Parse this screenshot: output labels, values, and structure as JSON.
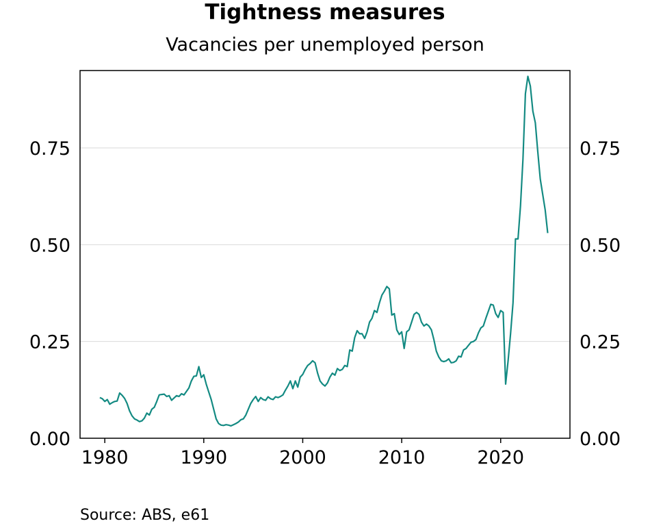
{
  "chart_data": {
    "type": "line",
    "title": "Tightness measures",
    "subtitle": "Vacancies per unemployed person",
    "source": "Source: ABS, e61",
    "xlabel": "",
    "ylabel": "",
    "xlim": [
      1977.5,
      2027
    ],
    "ylim": [
      0,
      0.95
    ],
    "x_ticks": [
      1980,
      1990,
      2000,
      2010,
      2020
    ],
    "x_tick_labels": [
      "1980",
      "1990",
      "2000",
      "2010",
      "2020"
    ],
    "y_ticks": [
      0,
      0.25,
      0.5,
      0.75
    ],
    "y_tick_labels": [
      "0.00",
      "0.25",
      "0.50",
      "0.75"
    ],
    "grid": "horizontal",
    "legend": "none",
    "line_color": "#138a82",
    "series": [
      {
        "x": [
          1979.5,
          1979.75,
          1980,
          1980.25,
          1980.5,
          1980.75,
          1981,
          1981.25,
          1981.5,
          1981.75,
          1982,
          1982.25,
          1982.5,
          1982.75,
          1983,
          1983.25,
          1983.5,
          1983.75,
          1984,
          1984.25,
          1984.5,
          1984.75,
          1985,
          1985.25,
          1985.5,
          1985.75,
          1986,
          1986.25,
          1986.5,
          1986.75,
          1987,
          1987.25,
          1987.5,
          1987.75,
          1988,
          1988.25,
          1988.5,
          1988.75,
          1989,
          1989.25,
          1989.5,
          1989.75,
          1990,
          1990.25,
          1990.5,
          1990.75,
          1991,
          1991.25,
          1991.5,
          1991.75,
          1992,
          1992.25,
          1992.5,
          1992.75,
          1993,
          1993.25,
          1993.5,
          1993.75,
          1994,
          1994.25,
          1994.5,
          1994.75,
          1995,
          1995.25,
          1995.5,
          1995.75,
          1996,
          1996.25,
          1996.5,
          1996.75,
          1997,
          1997.25,
          1997.5,
          1997.75,
          1998,
          1998.25,
          1998.5,
          1998.75,
          1999,
          1999.25,
          1999.5,
          1999.75,
          2000,
          2000.25,
          2000.5,
          2000.75,
          2001,
          2001.25,
          2001.5,
          2001.75,
          2002,
          2002.25,
          2002.5,
          2002.75,
          2003,
          2003.25,
          2003.5,
          2003.75,
          2004,
          2004.25,
          2004.5,
          2004.75,
          2005,
          2005.25,
          2005.5,
          2005.75,
          2006,
          2006.25,
          2006.5,
          2006.75,
          2007,
          2007.25,
          2007.5,
          2007.75,
          2008,
          2008.25,
          2008.5,
          2008.75,
          2009,
          2009.25,
          2009.5,
          2009.75,
          2010,
          2010.25,
          2010.5,
          2010.75,
          2011,
          2011.25,
          2011.5,
          2011.75,
          2012,
          2012.25,
          2012.5,
          2012.75,
          2013,
          2013.25,
          2013.5,
          2013.75,
          2014,
          2014.25,
          2014.5,
          2014.75,
          2015,
          2015.25,
          2015.5,
          2015.75,
          2016,
          2016.25,
          2016.5,
          2016.75,
          2017,
          2017.25,
          2017.5,
          2017.75,
          2018,
          2018.25,
          2018.5,
          2018.75,
          2019,
          2019.25,
          2019.5,
          2019.75,
          2020,
          2020.25,
          2020.5,
          2020.75,
          2021,
          2021.25,
          2021.5,
          2021.75,
          2022,
          2022.25,
          2022.5,
          2022.75,
          2023,
          2023.25,
          2023.5,
          2023.75,
          2024,
          2024.25,
          2024.5,
          2024.75
        ],
        "y": [
          0.105,
          0.102,
          0.095,
          0.1,
          0.088,
          0.092,
          0.095,
          0.096,
          0.117,
          0.111,
          0.103,
          0.09,
          0.071,
          0.058,
          0.05,
          0.047,
          0.043,
          0.045,
          0.052,
          0.065,
          0.06,
          0.075,
          0.08,
          0.095,
          0.112,
          0.113,
          0.114,
          0.108,
          0.11,
          0.098,
          0.104,
          0.11,
          0.108,
          0.115,
          0.112,
          0.121,
          0.13,
          0.148,
          0.16,
          0.161,
          0.185,
          0.157,
          0.164,
          0.14,
          0.12,
          0.1,
          0.075,
          0.05,
          0.038,
          0.034,
          0.033,
          0.035,
          0.034,
          0.032,
          0.035,
          0.038,
          0.042,
          0.048,
          0.05,
          0.06,
          0.075,
          0.09,
          0.1,
          0.108,
          0.095,
          0.105,
          0.1,
          0.098,
          0.107,
          0.102,
          0.1,
          0.107,
          0.105,
          0.108,
          0.112,
          0.124,
          0.135,
          0.148,
          0.128,
          0.148,
          0.132,
          0.158,
          0.165,
          0.178,
          0.188,
          0.193,
          0.2,
          0.195,
          0.168,
          0.148,
          0.14,
          0.135,
          0.143,
          0.158,
          0.168,
          0.163,
          0.18,
          0.175,
          0.178,
          0.188,
          0.185,
          0.228,
          0.225,
          0.26,
          0.278,
          0.27,
          0.27,
          0.258,
          0.275,
          0.3,
          0.31,
          0.33,
          0.325,
          0.35,
          0.37,
          0.38,
          0.392,
          0.386,
          0.318,
          0.322,
          0.28,
          0.268,
          0.275,
          0.232,
          0.275,
          0.28,
          0.3,
          0.32,
          0.325,
          0.32,
          0.3,
          0.29,
          0.295,
          0.29,
          0.28,
          0.255,
          0.225,
          0.21,
          0.2,
          0.198,
          0.2,
          0.205,
          0.195,
          0.196,
          0.2,
          0.212,
          0.21,
          0.228,
          0.232,
          0.24,
          0.248,
          0.25,
          0.255,
          0.272,
          0.285,
          0.29,
          0.31,
          0.328,
          0.346,
          0.344,
          0.322,
          0.312,
          0.33,
          0.325,
          0.14,
          0.2,
          0.27,
          0.35,
          0.515,
          0.515,
          0.6,
          0.72,
          0.89,
          0.935,
          0.91,
          0.845,
          0.815,
          0.74,
          0.67,
          0.63,
          0.59,
          0.53
        ]
      }
    ]
  }
}
